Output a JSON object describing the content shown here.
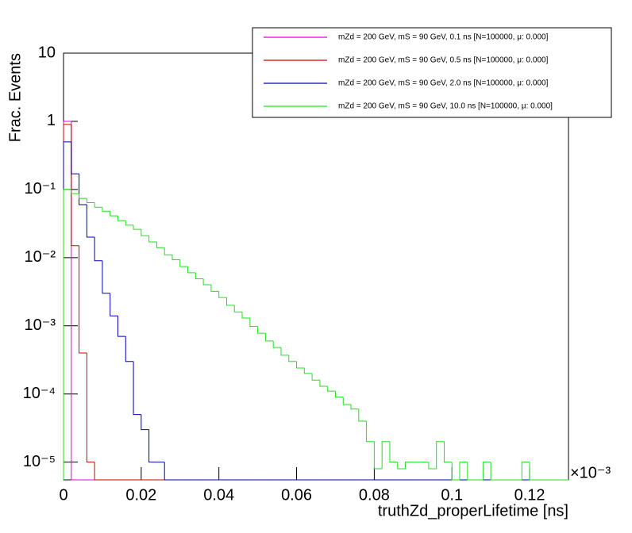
{
  "chart_data": {
    "type": "histogram",
    "y_label": "Frac. Events",
    "x_label": "truthZd_properLifetime [ns]",
    "x_multiplier": "×10⁻³",
    "log_y": true,
    "bins": [
      0,
      0.002,
      0.004,
      0.006,
      0.008,
      0.01,
      0.012,
      0.014,
      0.016,
      0.018,
      0.02,
      0.022,
      0.024,
      0.026,
      0.028,
      0.03,
      0.032,
      0.034,
      0.036,
      0.038,
      0.04,
      0.042,
      0.044,
      0.046,
      0.048,
      0.05,
      0.052,
      0.054,
      0.056,
      0.058,
      0.06,
      0.062,
      0.064,
      0.066,
      0.068,
      0.07,
      0.072,
      0.074,
      0.076,
      0.078,
      0.08,
      0.082,
      0.084,
      0.086,
      0.088,
      0.09,
      0.092,
      0.094,
      0.096,
      0.098,
      0.1,
      0.102,
      0.104,
      0.106,
      0.108,
      0.11,
      0.112,
      0.114,
      0.116,
      0.118,
      0.12,
      0.122,
      0.124,
      0.126,
      0.128,
      0.13
    ],
    "series": [
      {
        "name": "mZd = 200 GeV, mS = 90 GeV, 0.1 ns [N=100000, μ: 0.000]",
        "color": "#e000e0",
        "values": [
          1,
          0,
          0,
          0,
          0,
          0,
          0,
          0,
          0,
          0,
          0,
          0,
          0,
          0,
          0,
          0,
          0,
          0,
          0,
          0,
          0,
          0,
          0,
          0,
          0,
          0,
          0,
          0,
          0,
          0,
          0,
          0,
          0,
          0,
          0,
          0,
          0,
          0,
          0,
          0,
          0,
          0,
          0,
          0,
          0,
          0,
          0,
          0,
          0,
          0,
          0,
          0,
          0,
          0,
          0,
          0,
          0,
          0,
          0,
          0,
          0,
          0,
          0,
          0,
          0
        ]
      },
      {
        "name": "mZd = 200 GeV, mS = 90 GeV, 0.5 ns [N=100000, μ: 0.000]",
        "color": "#d00000",
        "values": [
          0.9,
          0.015,
          0.0004,
          1e-05,
          0,
          0,
          0,
          0,
          0,
          0,
          0,
          0,
          0,
          0,
          0,
          0,
          0,
          0,
          0,
          0,
          0,
          0,
          0,
          0,
          0,
          0,
          0,
          0,
          0,
          0,
          0,
          0,
          0,
          0,
          0,
          0,
          0,
          0,
          0,
          0,
          0,
          0,
          0,
          0,
          0,
          0,
          0,
          0,
          0,
          0,
          0,
          0,
          0,
          0,
          0,
          0,
          0,
          0,
          0,
          0,
          0,
          0,
          0,
          0,
          0
        ]
      },
      {
        "name": "mZd = 200 GeV, mS = 90 GeV, 2.0 ns [N=100000, μ: 0.000]",
        "color": "#0000b0",
        "values": [
          0.5,
          0.17,
          0.06,
          0.02,
          0.009,
          0.003,
          0.0014,
          0.0007,
          0.0003,
          5e-05,
          3e-05,
          1e-05,
          1e-05,
          0,
          0,
          0,
          0,
          0,
          0,
          0,
          0,
          0,
          0,
          0,
          0,
          0,
          0,
          0,
          0,
          0,
          0,
          0,
          0,
          0,
          0,
          0,
          0,
          0,
          0,
          0,
          0,
          0,
          0,
          0,
          0,
          0,
          0,
          0,
          0,
          0,
          0,
          0,
          0,
          0,
          0,
          0,
          0,
          0,
          0,
          0,
          0,
          0,
          0,
          0,
          0
        ]
      },
      {
        "name": "mZd = 200 GeV, mS = 90 GeV, 10.0 ns [N=100000, μ: 0.000]",
        "color": "#22e022",
        "values": [
          0.1,
          0.087,
          0.074,
          0.064,
          0.055,
          0.048,
          0.041,
          0.035,
          0.03,
          0.026,
          0.021,
          0.017,
          0.014,
          0.011,
          0.0093,
          0.0074,
          0.006,
          0.0049,
          0.004,
          0.0032,
          0.0026,
          0.002,
          0.0016,
          0.0013,
          0.00098,
          0.00078,
          0.0006,
          0.00048,
          0.00037,
          0.0003,
          0.00024,
          0.0002,
          0.00016,
          0.00013,
          0.00011,
          9e-05,
          7e-05,
          6e-05,
          4e-05,
          2e-05,
          8e-06,
          2e-05,
          1e-05,
          8e-06,
          1e-05,
          1e-05,
          1e-05,
          8e-06,
          2e-05,
          1e-05,
          0,
          1e-05,
          0,
          0,
          1e-05,
          0,
          0,
          0,
          0,
          1e-05,
          0,
          0,
          0,
          0,
          0
        ]
      }
    ],
    "xlim": [
      0,
      0.13
    ],
    "xticks": [
      0,
      0.02,
      0.04,
      0.06,
      0.08,
      0.1,
      0.12
    ],
    "ylim": [
      5.5e-06,
      10
    ],
    "yticks": [
      {
        "value": 10,
        "label": "10"
      },
      {
        "value": 1,
        "label": "1"
      },
      {
        "value": 0.1,
        "label": "10⁻¹"
      },
      {
        "value": 0.01,
        "label": "10⁻²"
      },
      {
        "value": 0.001,
        "label": "10⁻³"
      },
      {
        "value": 0.0001,
        "label": "10⁻⁴"
      },
      {
        "value": 1e-05,
        "label": "10⁻⁵"
      }
    ]
  }
}
